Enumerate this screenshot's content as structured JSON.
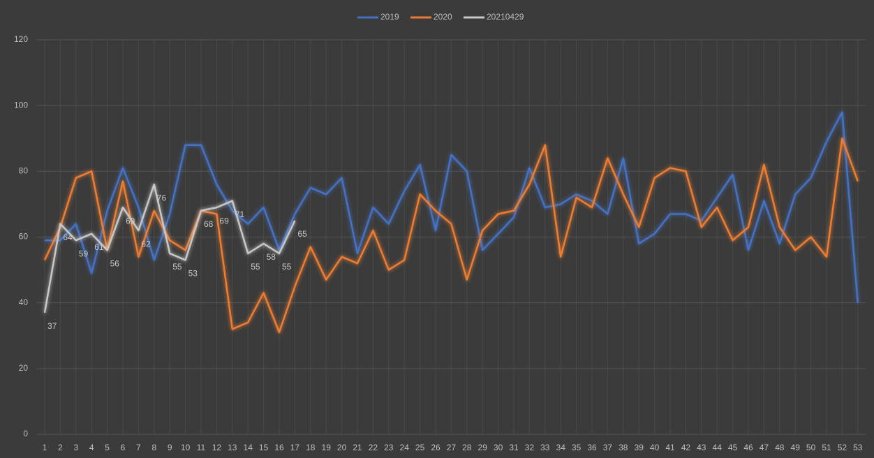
{
  "chart_data": {
    "type": "line",
    "categories": [
      1,
      2,
      3,
      4,
      5,
      6,
      7,
      8,
      9,
      10,
      11,
      12,
      13,
      14,
      15,
      16,
      17,
      18,
      19,
      20,
      21,
      22,
      23,
      24,
      25,
      26,
      27,
      28,
      29,
      30,
      31,
      32,
      33,
      34,
      35,
      36,
      37,
      38,
      39,
      40,
      41,
      42,
      43,
      44,
      45,
      46,
      47,
      48,
      49,
      50,
      51,
      52,
      53
    ],
    "series": [
      {
        "name": "2019",
        "color": "#4472c4",
        "values": [
          59,
          59,
          64,
          49,
          68,
          81,
          69,
          53,
          67,
          88,
          88,
          76,
          68,
          64,
          69,
          56,
          67,
          75,
          73,
          78,
          55,
          69,
          64,
          74,
          82,
          62,
          85,
          80,
          56,
          61,
          66,
          81,
          69,
          70,
          73,
          71,
          67,
          84,
          58,
          61,
          67,
          67,
          65,
          72,
          79,
          56,
          71,
          58,
          73,
          78,
          89,
          98,
          40
        ]
      },
      {
        "name": "2020",
        "color": "#ed7d31",
        "values": [
          53,
          63,
          78,
          80,
          56,
          77,
          54,
          68,
          59,
          56,
          68,
          67,
          32,
          34,
          43,
          31,
          45,
          57,
          47,
          54,
          52,
          62,
          50,
          53,
          73,
          68,
          64,
          47,
          62,
          67,
          68,
          76,
          88,
          54,
          72,
          69,
          84,
          73,
          63,
          78,
          81,
          80,
          63,
          69,
          59,
          63,
          82,
          63,
          56,
          60,
          54,
          90,
          77
        ]
      },
      {
        "name": "20210429",
        "color": "#c8c8c8",
        "data_labels": true,
        "values": [
          37,
          64,
          59,
          61,
          56,
          69,
          62,
          76,
          55,
          53,
          68,
          69,
          71,
          55,
          58,
          55,
          65,
          null,
          null,
          null,
          null,
          null,
          null,
          null,
          null,
          null,
          null,
          null,
          null,
          null,
          null,
          null,
          null,
          null,
          null,
          null,
          null,
          null,
          null,
          null,
          null,
          null,
          null,
          null,
          null,
          null,
          null,
          null,
          null,
          null,
          null,
          null,
          null
        ]
      }
    ],
    "ylim": [
      0,
      120
    ],
    "yticks": [
      0,
      20,
      40,
      60,
      80,
      100,
      120
    ],
    "grid": true,
    "legend": "top"
  }
}
